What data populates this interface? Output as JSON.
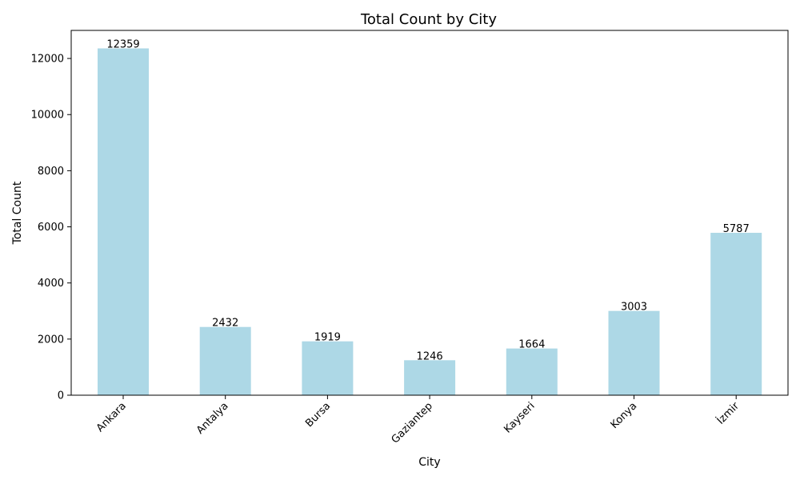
{
  "chart_data": {
    "type": "bar",
    "title": "Total Count by City",
    "xlabel": "City",
    "ylabel": "Total Count",
    "categories": [
      "Ankara",
      "Antalya",
      "Bursa",
      "Gaziantep",
      "Kayseri",
      "Konya",
      "İzmir"
    ],
    "values": [
      12359,
      2432,
      1919,
      1246,
      1664,
      3003,
      5787
    ],
    "data_labels": [
      "12359",
      "2432",
      "1919",
      "1246",
      "1664",
      "3003",
      "5787"
    ],
    "yticks": [
      0,
      2000,
      4000,
      6000,
      8000,
      10000,
      12000
    ],
    "ytick_labels": [
      "0",
      "2000",
      "4000",
      "6000",
      "8000",
      "10000",
      "12000"
    ],
    "ylim": [
      0,
      13000
    ],
    "grid": false,
    "legend": "none",
    "bar_color": "#add8e6"
  }
}
